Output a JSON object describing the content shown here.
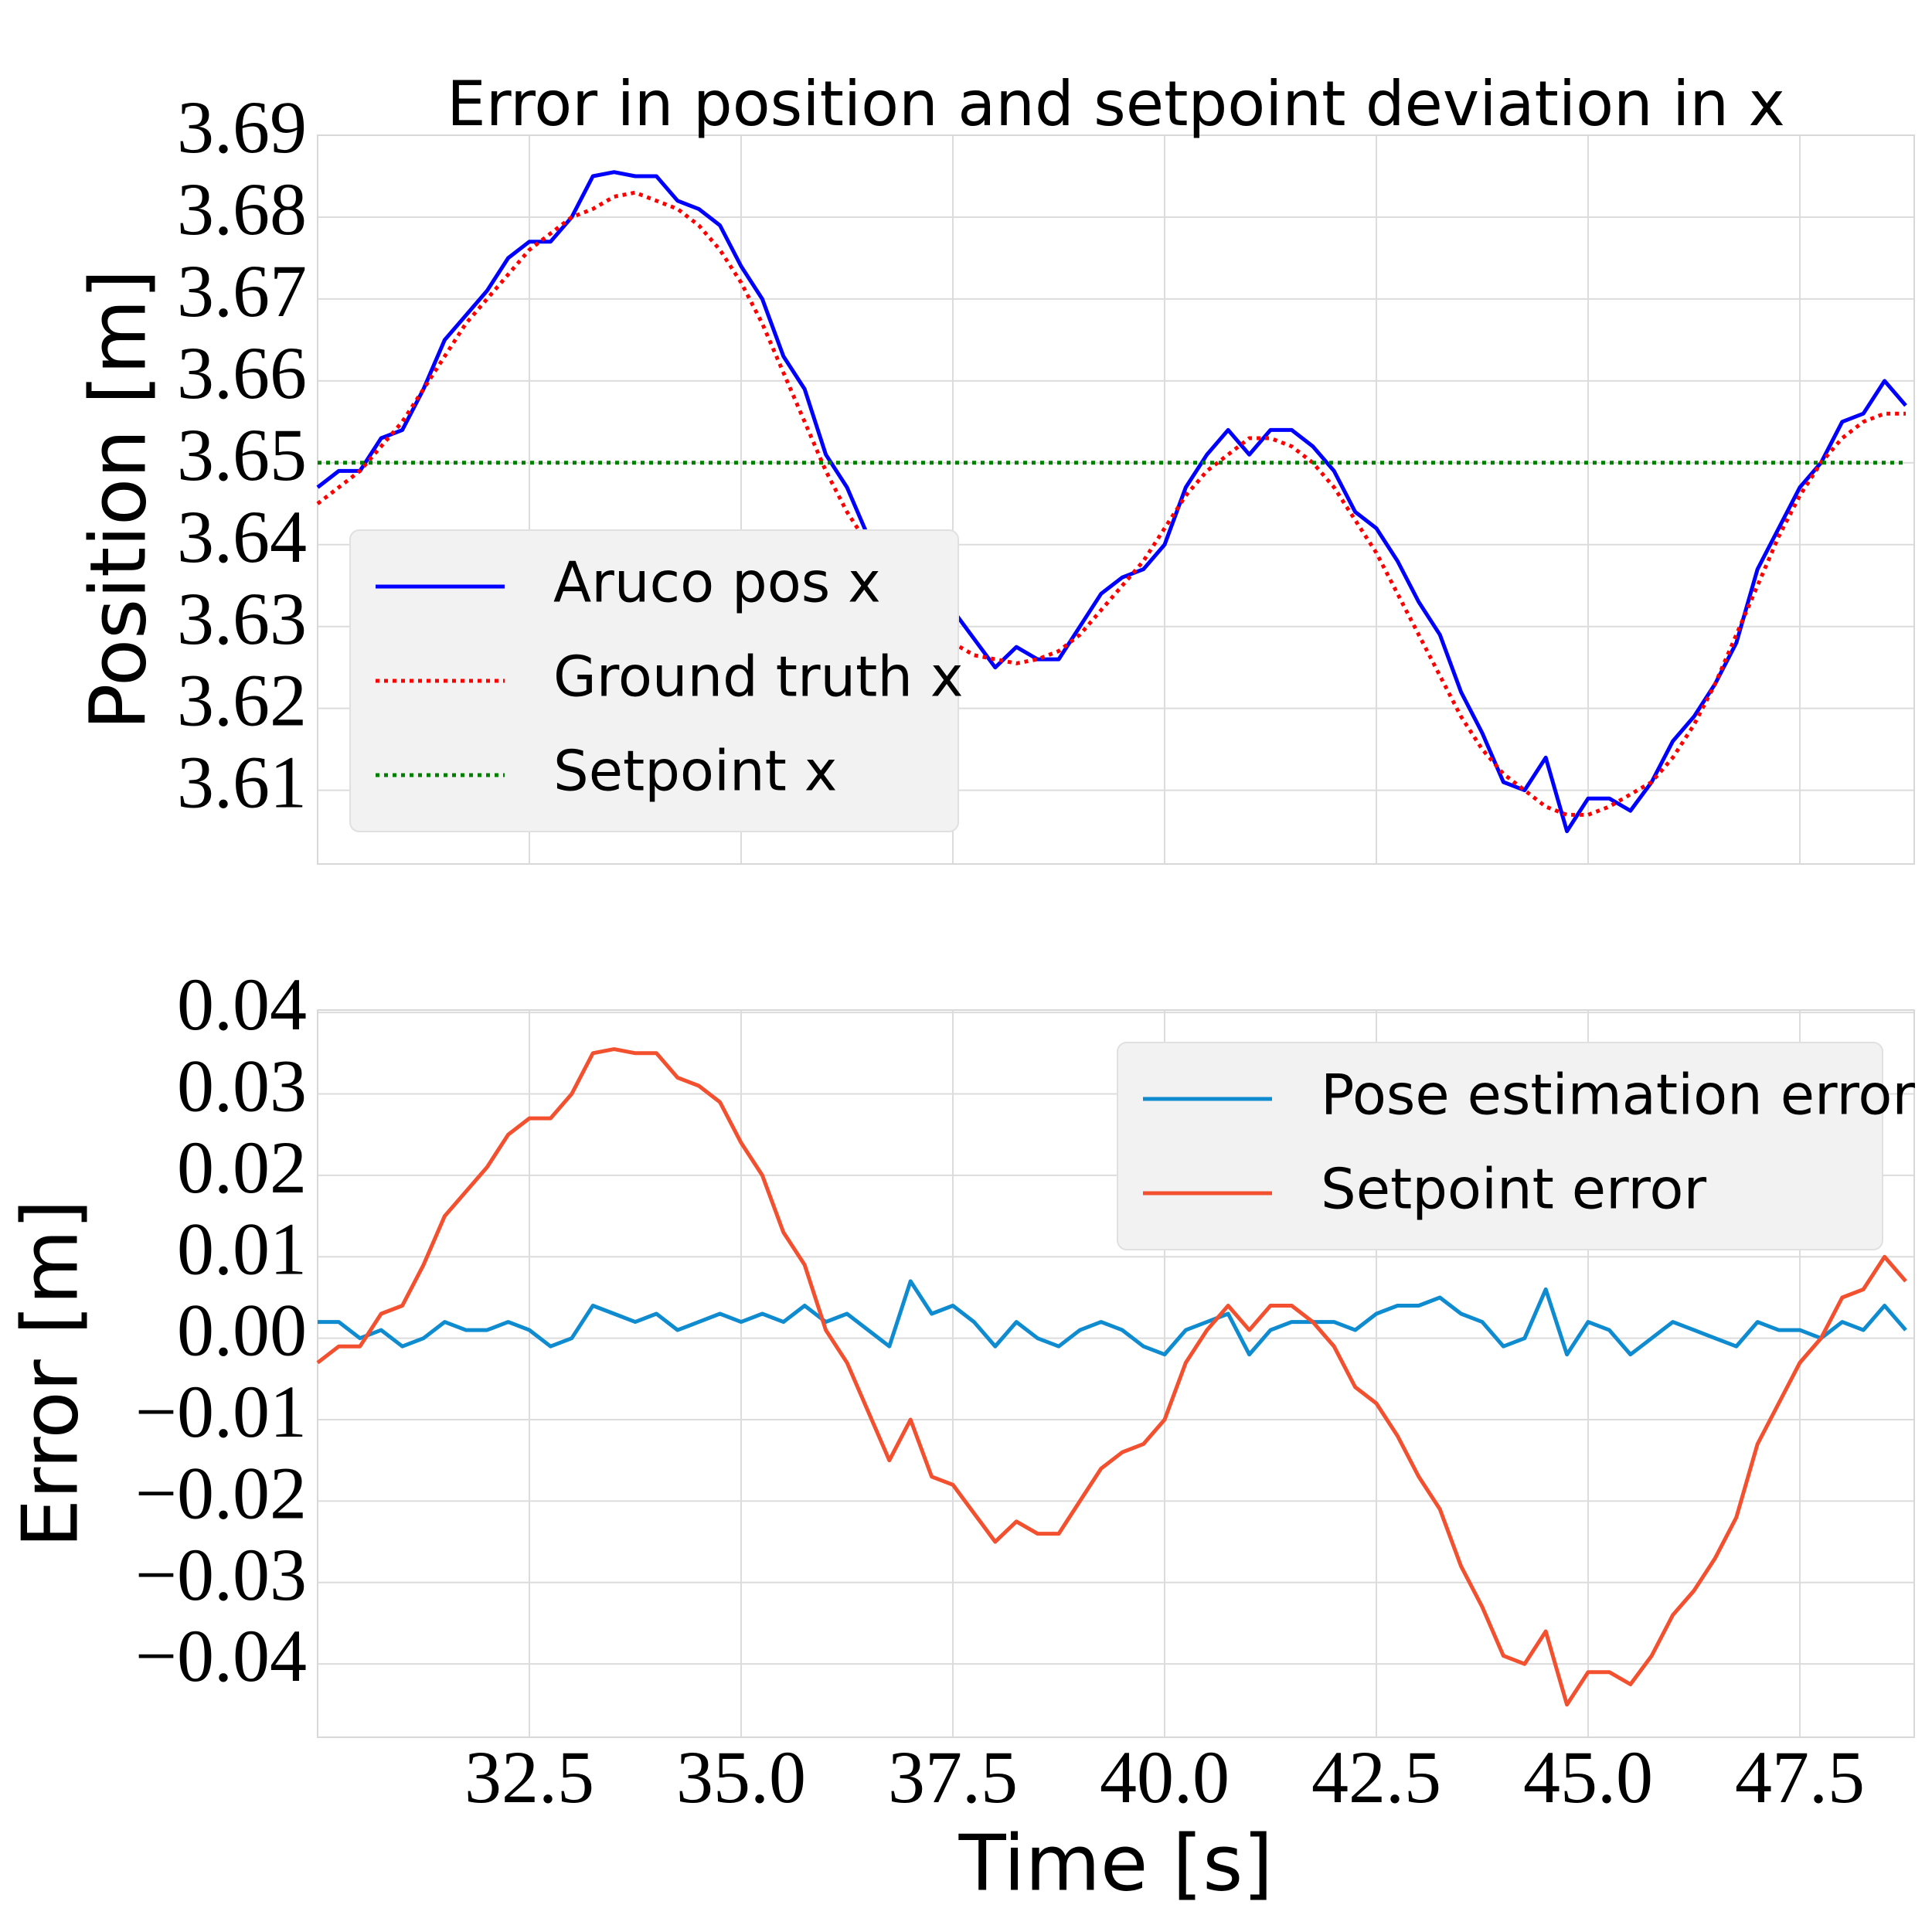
{
  "chart_data": [
    {
      "type": "line",
      "title": "Error in position and setpoint deviation in x",
      "ylabel": "Position [m]",
      "x": [
        30.0,
        30.25,
        30.5,
        30.75,
        31.0,
        31.25,
        31.5,
        31.75,
        32.0,
        32.25,
        32.5,
        32.75,
        33.0,
        33.25,
        33.5,
        33.75,
        34.0,
        34.25,
        34.5,
        34.75,
        35.0,
        35.25,
        35.5,
        35.75,
        36.0,
        36.25,
        36.5,
        36.75,
        37.0,
        37.25,
        37.5,
        37.75,
        38.0,
        38.25,
        38.5,
        38.75,
        39.0,
        39.25,
        39.5,
        39.75,
        40.0,
        40.25,
        40.5,
        40.75,
        41.0,
        41.25,
        41.5,
        41.75,
        42.0,
        42.25,
        42.5,
        42.75,
        43.0,
        43.25,
        43.5,
        43.75,
        44.0,
        44.25,
        44.5,
        44.75,
        45.0,
        45.25,
        45.5,
        45.75,
        46.0,
        46.25,
        46.5,
        46.75,
        47.0,
        47.25,
        47.5,
        47.75,
        48.0,
        48.25,
        48.5,
        48.75
      ],
      "series": [
        {
          "name": "Aruco pos x",
          "color": "#0000ff",
          "linestyle": "solid",
          "values": [
            3.647,
            3.649,
            3.649,
            3.653,
            3.654,
            3.659,
            3.665,
            3.668,
            3.671,
            3.675,
            3.677,
            3.677,
            3.68,
            3.685,
            3.6855,
            3.685,
            3.685,
            3.682,
            3.681,
            3.679,
            3.674,
            3.67,
            3.663,
            3.659,
            3.651,
            3.647,
            3.641,
            3.635,
            3.64,
            3.633,
            3.632,
            3.6285,
            3.625,
            3.6275,
            3.626,
            3.626,
            3.63,
            3.634,
            3.636,
            3.637,
            3.64,
            3.647,
            3.651,
            3.654,
            3.651,
            3.654,
            3.654,
            3.652,
            3.649,
            3.644,
            3.642,
            3.638,
            3.633,
            3.629,
            3.622,
            3.617,
            3.611,
            3.61,
            3.614,
            3.605,
            3.609,
            3.609,
            3.6075,
            3.611,
            3.616,
            3.619,
            3.623,
            3.628,
            3.637,
            3.642,
            3.647,
            3.65,
            3.655,
            3.656,
            3.66,
            3.657
          ]
        },
        {
          "name": "Ground truth x",
          "color": "#ff0000",
          "linestyle": "dotted",
          "values": [
            3.645,
            3.647,
            3.649,
            3.652,
            3.655,
            3.659,
            3.663,
            3.667,
            3.67,
            3.673,
            3.676,
            3.678,
            3.68,
            3.681,
            3.6825,
            3.683,
            3.682,
            3.681,
            3.679,
            3.676,
            3.672,
            3.667,
            3.661,
            3.655,
            3.649,
            3.644,
            3.64,
            3.636,
            3.633,
            3.63,
            3.628,
            3.6265,
            3.626,
            3.6255,
            3.626,
            3.627,
            3.629,
            3.632,
            3.635,
            3.638,
            3.642,
            3.646,
            3.649,
            3.651,
            3.653,
            3.653,
            3.652,
            3.65,
            3.647,
            3.643,
            3.639,
            3.634,
            3.629,
            3.624,
            3.619,
            3.615,
            3.612,
            3.61,
            3.608,
            3.607,
            3.607,
            3.608,
            3.6095,
            3.611,
            3.614,
            3.618,
            3.623,
            3.629,
            3.635,
            3.641,
            3.646,
            3.65,
            3.653,
            3.655,
            3.656,
            3.656
          ]
        },
        {
          "name": "Setpoint x",
          "color": "#008000",
          "linestyle": "dotted",
          "values": [
            3.65,
            3.65,
            3.65,
            3.65,
            3.65,
            3.65,
            3.65,
            3.65,
            3.65,
            3.65,
            3.65,
            3.65,
            3.65,
            3.65,
            3.65,
            3.65,
            3.65,
            3.65,
            3.65,
            3.65,
            3.65,
            3.65,
            3.65,
            3.65,
            3.65,
            3.65,
            3.65,
            3.65,
            3.65,
            3.65,
            3.65,
            3.65,
            3.65,
            3.65,
            3.65,
            3.65,
            3.65,
            3.65,
            3.65,
            3.65,
            3.65,
            3.65,
            3.65,
            3.65,
            3.65,
            3.65,
            3.65,
            3.65,
            3.65,
            3.65,
            3.65,
            3.65,
            3.65,
            3.65,
            3.65,
            3.65,
            3.65,
            3.65,
            3.65,
            3.65,
            3.65,
            3.65,
            3.65,
            3.65,
            3.65,
            3.65,
            3.65,
            3.65,
            3.65,
            3.65,
            3.65,
            3.65,
            3.65,
            3.65,
            3.65,
            3.65
          ]
        }
      ],
      "xlim": [
        30.0,
        48.85
      ],
      "xticks": [
        32.5,
        {
          "value": 35,
          "label": "35.0"
        },
        37.5,
        {
          "value": 40,
          "label": "40.0"
        },
        42.5,
        {
          "value": 45,
          "label": "45.0"
        },
        47.5
      ],
      "ylim": [
        3.601,
        3.69
      ],
      "yticks": [
        3.61,
        3.62,
        3.63,
        3.64,
        3.65,
        3.66,
        3.67,
        3.68,
        3.69
      ],
      "grid": true,
      "legend": "lower left"
    },
    {
      "type": "line",
      "xlabel": "Time [s]",
      "ylabel": "Error [m]",
      "x": [
        30.0,
        30.25,
        30.5,
        30.75,
        31.0,
        31.25,
        31.5,
        31.75,
        32.0,
        32.25,
        32.5,
        32.75,
        33.0,
        33.25,
        33.5,
        33.75,
        34.0,
        34.25,
        34.5,
        34.75,
        35.0,
        35.25,
        35.5,
        35.75,
        36.0,
        36.25,
        36.5,
        36.75,
        37.0,
        37.25,
        37.5,
        37.75,
        38.0,
        38.25,
        38.5,
        38.75,
        39.0,
        39.25,
        39.5,
        39.75,
        40.0,
        40.25,
        40.5,
        40.75,
        41.0,
        41.25,
        41.5,
        41.75,
        42.0,
        42.25,
        42.5,
        42.75,
        43.0,
        43.25,
        43.5,
        43.75,
        44.0,
        44.25,
        44.5,
        44.75,
        45.0,
        45.25,
        45.5,
        45.75,
        46.0,
        46.25,
        46.5,
        46.75,
        47.0,
        47.25,
        47.5,
        47.75,
        48.0,
        48.25,
        48.5,
        48.75
      ],
      "series": [
        {
          "name": "Pose estimation error",
          "color": "#0f8bd0",
          "linestyle": "solid",
          "values": [
            0.002,
            0.002,
            0,
            0.001,
            -0.001,
            0,
            0.002,
            0.001,
            0.001,
            0.002,
            0.001,
            -0.001,
            0,
            0.004,
            0.003,
            0.002,
            0.003,
            0.001,
            0.002,
            0.003,
            0.002,
            0.003,
            0.002,
            0.004,
            0.002,
            0.003,
            0.001,
            -0.001,
            0.007,
            0.003,
            0.004,
            0.002,
            -0.001,
            0.002,
            0,
            -0.001,
            0.001,
            0.002,
            0.001,
            -0.001,
            -0.002,
            0.001,
            0.002,
            0.003,
            -0.002,
            0.001,
            0.002,
            0.002,
            0.002,
            0.001,
            0.003,
            0.004,
            0.004,
            0.005,
            0.003,
            0.002,
            -0.001,
            0,
            0.006,
            -0.002,
            0.002,
            0.001,
            -0.002,
            0,
            0.002,
            0.001,
            0,
            -0.001,
            0.002,
            0.001,
            0.001,
            0,
            0.002,
            0.001,
            0.004,
            0.001
          ]
        },
        {
          "name": "Setpoint error",
          "color": "#f2502f",
          "linestyle": "solid",
          "values": [
            -0.003,
            -0.001,
            -0.001,
            0.003,
            0.004,
            0.009,
            0.015,
            0.018,
            0.021,
            0.025,
            0.027,
            0.027,
            0.03,
            0.035,
            0.0355,
            0.035,
            0.035,
            0.032,
            0.031,
            0.029,
            0.024,
            0.02,
            0.013,
            0.009,
            0.001,
            -0.003,
            -0.009,
            -0.015,
            -0.01,
            -0.017,
            -0.018,
            -0.0215,
            -0.025,
            -0.0225,
            -0.024,
            -0.024,
            -0.02,
            -0.016,
            -0.014,
            -0.013,
            -0.01,
            -0.003,
            0.001,
            0.004,
            0.001,
            0.004,
            0.004,
            0.002,
            -0.001,
            -0.006,
            -0.008,
            -0.012,
            -0.017,
            -0.021,
            -0.028,
            -0.033,
            -0.039,
            -0.04,
            -0.036,
            -0.045,
            -0.041,
            -0.041,
            -0.0425,
            -0.039,
            -0.034,
            -0.031,
            -0.027,
            -0.022,
            -0.013,
            -0.008,
            -0.003,
            0,
            0.005,
            0.006,
            0.01,
            0.007
          ]
        }
      ],
      "xlim": [
        30.0,
        48.85
      ],
      "xticks": [
        32.5,
        {
          "value": 35,
          "label": "35.0"
        },
        37.5,
        {
          "value": 40,
          "label": "40.0"
        },
        42.5,
        {
          "value": 45,
          "label": "45.0"
        },
        47.5
      ],
      "ylim": [
        -0.049,
        0.0403
      ],
      "yticks": [
        {
          "value": -0.04,
          "label": "−0.04"
        },
        {
          "value": -0.03,
          "label": "−0.03"
        },
        {
          "value": -0.02,
          "label": "−0.02"
        },
        {
          "value": -0.01,
          "label": "−0.01"
        },
        {
          "value": 0,
          "label": "0.00"
        },
        0.01,
        0.02,
        0.03,
        0.04
      ],
      "grid": true,
      "legend": "upper right"
    }
  ]
}
